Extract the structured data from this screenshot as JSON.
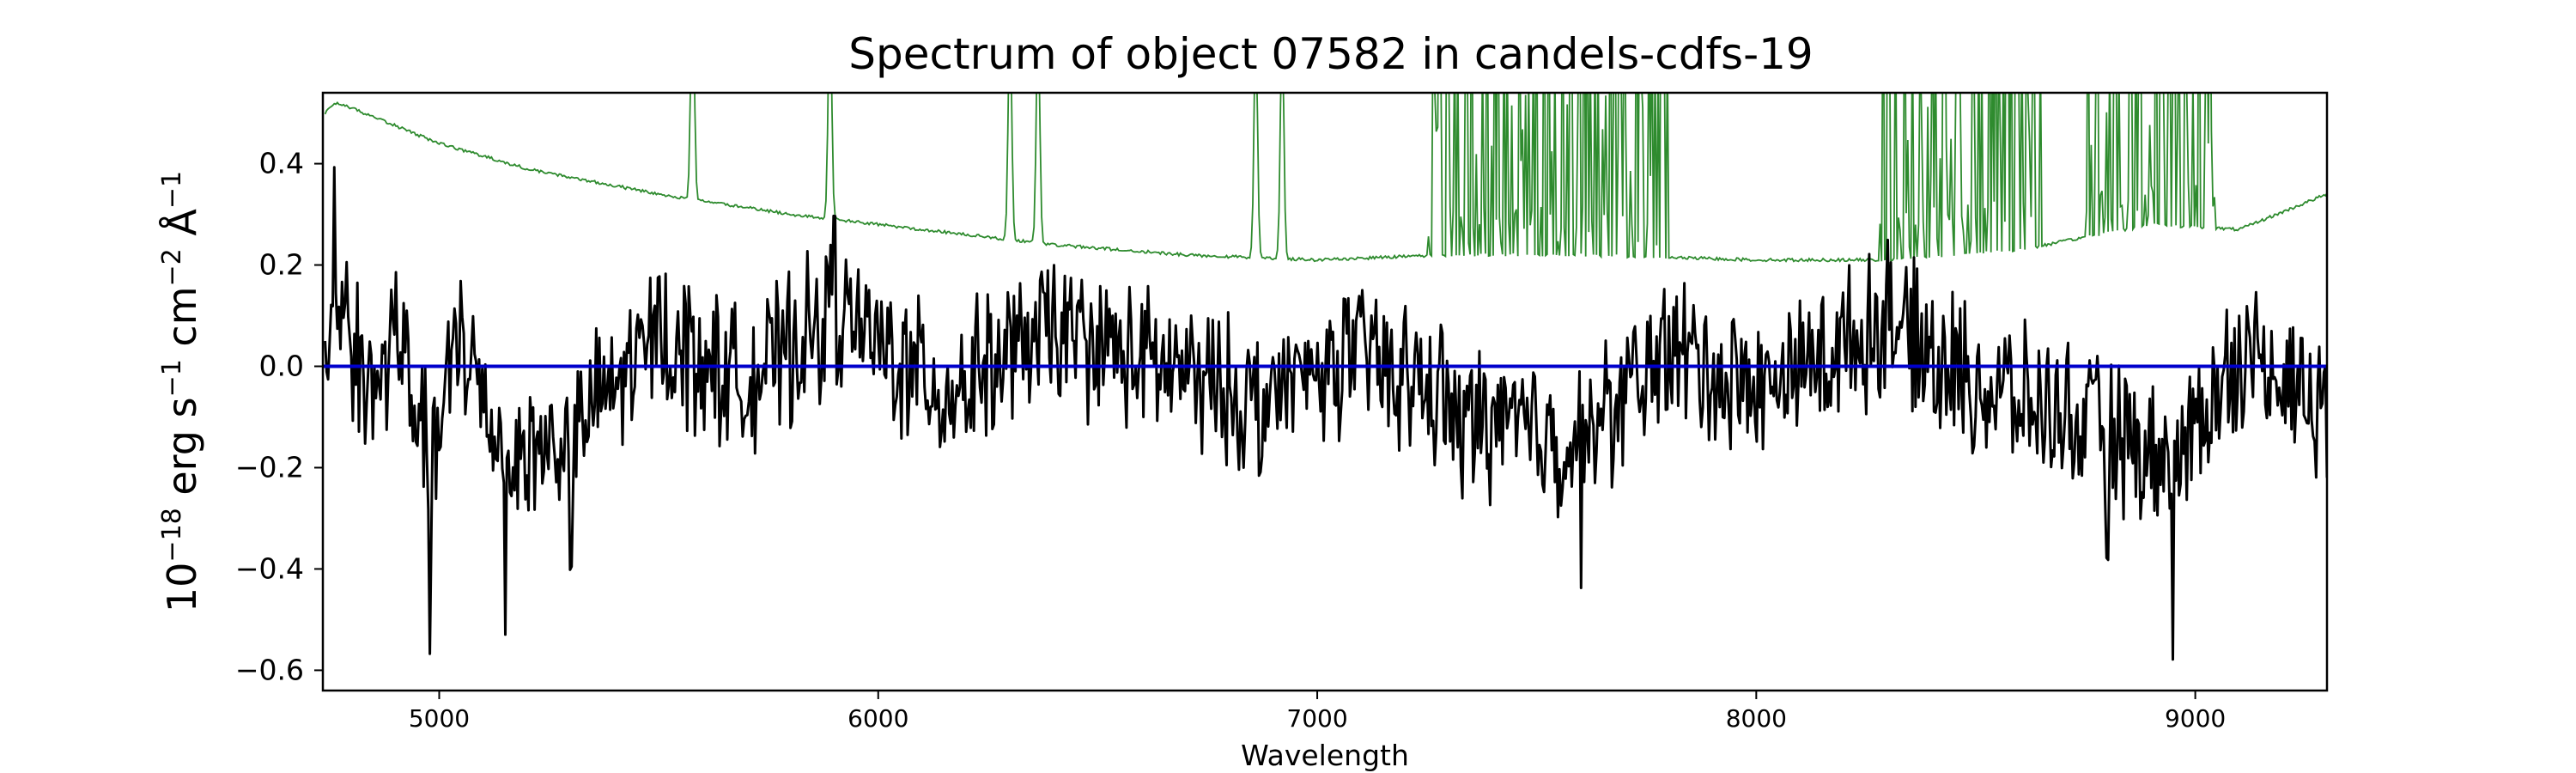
{
  "chart_data": {
    "type": "line",
    "title": "Spectrum of object 07582 in candels-cdfs-19",
    "xlabel": "Wavelength",
    "ylabel": {
      "base": "10",
      "base_sup": "−18",
      "unit_erg": " erg s",
      "erg_sup": "−1",
      "unit_cm": " cm",
      "cm_sup": "−2",
      "unit_a": " Å",
      "a_sup": "−1"
    },
    "xlim": [
      4735,
      9300
    ],
    "ylim": [
      -0.64,
      0.54
    ],
    "xticks": [
      5000,
      6000,
      7000,
      8000,
      9000
    ],
    "xtick_labels": [
      "5000",
      "6000",
      "7000",
      "8000",
      "9000"
    ],
    "yticks": [
      -0.6,
      -0.4,
      -0.2,
      0.0,
      0.2,
      0.4
    ],
    "ytick_labels": [
      "−0.6",
      "−0.4",
      "−0.2",
      "0.0",
      "0.2",
      "0.4"
    ],
    "grid": false,
    "series": [
      {
        "role": "flux",
        "color": "#000000",
        "anchors": [
          [
            4740,
            0.05
          ],
          [
            4760,
            0.4
          ],
          [
            4790,
            0.2
          ],
          [
            4850,
            -0.15
          ],
          [
            4900,
            0.2
          ],
          [
            4980,
            -0.58
          ],
          [
            5050,
            0.18
          ],
          [
            5150,
            -0.53
          ],
          [
            5300,
            -0.4
          ],
          [
            5500,
            0.18
          ],
          [
            5700,
            -0.1
          ],
          [
            5900,
            0.3
          ],
          [
            6150,
            -0.15
          ],
          [
            6400,
            0.2
          ],
          [
            6700,
            -0.05
          ],
          [
            6870,
            -0.21
          ],
          [
            7100,
            0.1
          ],
          [
            7330,
            -0.26
          ],
          [
            7600,
            -0.44
          ],
          [
            7800,
            0.1
          ],
          [
            8000,
            -0.15
          ],
          [
            8300,
            0.25
          ],
          [
            8500,
            -0.1
          ],
          [
            8800,
            -0.38
          ],
          [
            8950,
            -0.58
          ],
          [
            9100,
            0.1
          ],
          [
            9300,
            -0.22
          ]
        ],
        "noise_amplitude": 0.12,
        "points": 1300
      },
      {
        "role": "error",
        "color": "#2e8b2e",
        "continuum": [
          [
            4740,
            0.5
          ],
          [
            4760,
            0.52
          ],
          [
            4800,
            0.51
          ],
          [
            5000,
            0.44
          ],
          [
            5200,
            0.39
          ],
          [
            5500,
            0.34
          ],
          [
            5800,
            0.3
          ],
          [
            6100,
            0.27
          ],
          [
            6400,
            0.24
          ],
          [
            6700,
            0.22
          ],
          [
            7000,
            0.21
          ],
          [
            7300,
            0.22
          ],
          [
            7600,
            0.22
          ],
          [
            8000,
            0.21
          ],
          [
            8300,
            0.21
          ],
          [
            8600,
            0.23
          ],
          [
            8900,
            0.28
          ],
          [
            9100,
            0.27
          ],
          [
            9300,
            0.34
          ]
        ],
        "emission_lines": [
          5577,
          5890,
          6300,
          6364,
          6860,
          6920
        ],
        "forest_ranges": [
          [
            7240,
            7800
          ],
          [
            8280,
            8650
          ],
          [
            8750,
            9050
          ]
        ],
        "points": 1300
      },
      {
        "role": "zero",
        "color": "#0000cc",
        "values": [
          [
            4735,
            0.0
          ],
          [
            9300,
            0.0
          ]
        ]
      }
    ]
  }
}
